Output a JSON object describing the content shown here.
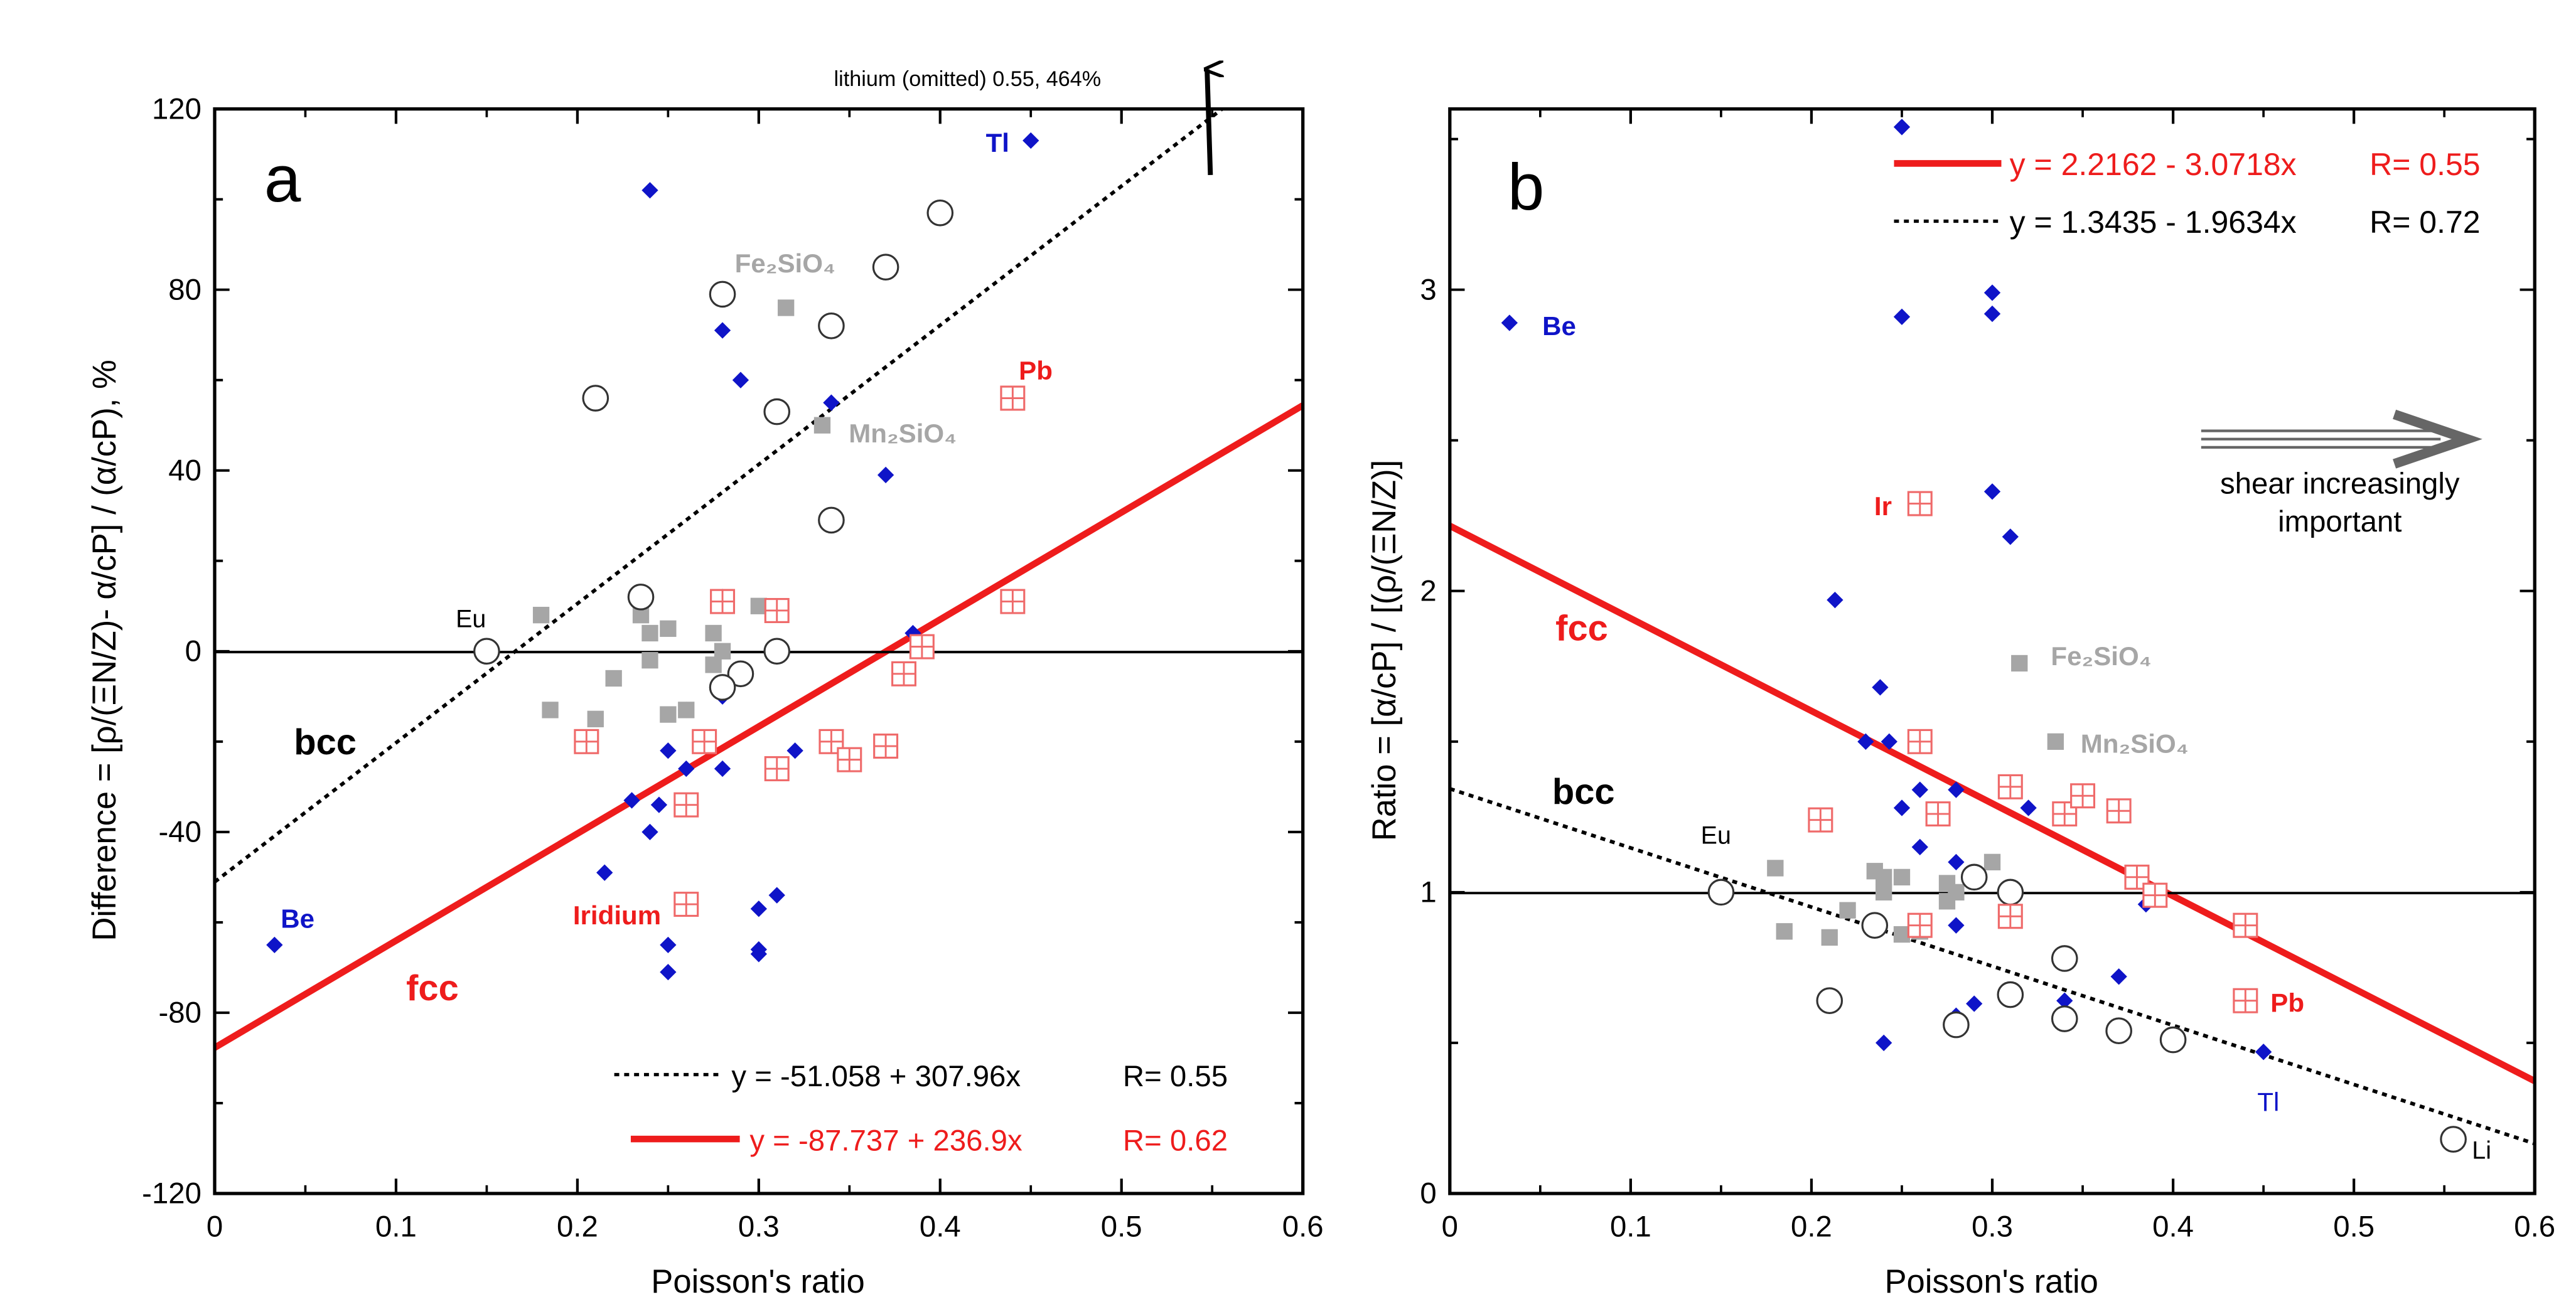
{
  "colors": {
    "red": "#ee1c1c",
    "blue": "#0f14c8",
    "gray": "#a6a6a6",
    "black": "#000000",
    "pinkbox": "#ef6a6a"
  },
  "chart_data": [
    {
      "type": "scatter",
      "panel_label": "a",
      "title": "",
      "xlabel": "Poisson's ratio",
      "ylabel": "Difference = [ρ/(ΞN/Z)- α/cP] / (α/cP), %",
      "xlim": [
        0,
        0.6
      ],
      "ylim": [
        -120,
        120
      ],
      "xticks": [
        "0",
        "0.1",
        "0.2",
        "0.3",
        "0.4",
        "0.5",
        "0.6"
      ],
      "yticks": [
        "-120",
        "-80",
        "-40",
        "0",
        "40",
        "80",
        "120"
      ],
      "annotations": {
        "be": "Be",
        "tl": "Tl",
        "pb": "Pb",
        "iridium": "Iridium",
        "eu": "Eu",
        "fe2sio4": "Fe₂SiO₄",
        "mn2sio4": "Mn₂SiO₄",
        "bcc": "bcc",
        "fcc": "fcc",
        "lithium": "lithium (omitted) 0.55, 464%"
      },
      "legend": [
        {
          "label": "y = -51.058 + 307.96x",
          "r": "R= 0.55",
          "style": "dotted"
        },
        {
          "label": "y = -87.737 + 236.9x",
          "r": "R= 0.62",
          "style": "solid-red"
        }
      ],
      "fits": [
        {
          "name": "bcc",
          "intercept": -51.058,
          "slope": 307.96
        },
        {
          "name": "fcc",
          "intercept": -87.737,
          "slope": 236.9
        }
      ],
      "series": [
        {
          "name": "blue diamonds",
          "points": [
            [
              0.033,
              -65
            ],
            [
              0.24,
              102
            ],
            [
              0.28,
              71
            ],
            [
              0.29,
              60
            ],
            [
              0.34,
              55
            ],
            [
              0.37,
              39
            ],
            [
              0.45,
              113
            ],
            [
              0.28,
              12
            ],
            [
              0.385,
              4
            ],
            [
              0.26,
              -13
            ],
            [
              0.28,
              -10
            ],
            [
              0.25,
              -22
            ],
            [
              0.26,
              -26
            ],
            [
              0.28,
              -26
            ],
            [
              0.32,
              -22
            ],
            [
              0.23,
              -33
            ],
            [
              0.245,
              -34
            ],
            [
              0.24,
              -40
            ],
            [
              0.215,
              -49
            ],
            [
              0.31,
              -54
            ],
            [
              0.3,
              -57
            ],
            [
              0.25,
              -65
            ],
            [
              0.3,
              -66
            ],
            [
              0.3,
              -67
            ],
            [
              0.25,
              -71
            ]
          ]
        },
        {
          "name": "gray squares",
          "points": [
            [
              0.315,
              76
            ],
            [
              0.335,
              50
            ],
            [
              0.18,
              8
            ],
            [
              0.235,
              8
            ],
            [
              0.24,
              4
            ],
            [
              0.25,
              5
            ],
            [
              0.275,
              4
            ],
            [
              0.3,
              10
            ],
            [
              0.24,
              -2
            ],
            [
              0.28,
              0
            ],
            [
              0.275,
              -3
            ],
            [
              0.22,
              -6
            ],
            [
              0.185,
              -13
            ],
            [
              0.21,
              -15
            ],
            [
              0.25,
              -14
            ],
            [
              0.26,
              -13
            ]
          ]
        },
        {
          "name": "open circles",
          "points": [
            [
              0.21,
              56
            ],
            [
              0.28,
              79
            ],
            [
              0.37,
              85
            ],
            [
              0.4,
              97
            ],
            [
              0.34,
              72
            ],
            [
              0.31,
              53
            ],
            [
              0.34,
              29
            ],
            [
              0.235,
              12
            ],
            [
              0.15,
              0
            ],
            [
              0.31,
              0
            ],
            [
              0.29,
              -5
            ],
            [
              0.28,
              -8
            ]
          ]
        },
        {
          "name": "red boxed crosses",
          "points": [
            [
              0.44,
              56
            ],
            [
              0.28,
              11
            ],
            [
              0.31,
              9
            ],
            [
              0.44,
              11
            ],
            [
              0.39,
              1
            ],
            [
              0.38,
              -5
            ],
            [
              0.205,
              -20
            ],
            [
              0.27,
              -20
            ],
            [
              0.34,
              -20
            ],
            [
              0.35,
              -24
            ],
            [
              0.37,
              -21
            ],
            [
              0.31,
              -26
            ],
            [
              0.26,
              -34
            ],
            [
              0.26,
              -56
            ]
          ]
        }
      ]
    },
    {
      "type": "scatter",
      "panel_label": "b",
      "title": "",
      "xlabel": "Poisson's ratio",
      "ylabel": "Ratio = [α/cP] / [(ρ/(ΞN/Z)]",
      "xlim": [
        0,
        0.6
      ],
      "ylim": [
        0,
        3.6
      ],
      "xticks": [
        "0",
        "0.1",
        "0.2",
        "0.3",
        "0.4",
        "0.5",
        "0.6"
      ],
      "yticks": [
        "0",
        "1",
        "2",
        "3"
      ],
      "annotations": {
        "be": "Be",
        "ir": "Ir",
        "pb": "Pb",
        "tl": "Tl",
        "eu": "Eu",
        "li": "Li",
        "fe2sio4": "Fe₂SiO₄",
        "mn2sio4": "Mn₂SiO₄",
        "bcc": "bcc",
        "fcc": "fcc",
        "shear_line1": "shear increasingly",
        "shear_line2": "important"
      },
      "legend": [
        {
          "label": "y = 2.2162 - 3.0718x",
          "r": "R= 0.55",
          "style": "solid-red"
        },
        {
          "label": "y = 1.3435 - 1.9634x",
          "r": "R= 0.72",
          "style": "dotted"
        }
      ],
      "fits": [
        {
          "name": "fcc",
          "intercept": 2.2162,
          "slope": -3.0718
        },
        {
          "name": "bcc",
          "intercept": 1.3435,
          "slope": -1.9634
        }
      ],
      "series": [
        {
          "name": "blue diamonds",
          "points": [
            [
              0.033,
              2.89
            ],
            [
              0.25,
              3.54
            ],
            [
              0.25,
              2.91
            ],
            [
              0.3,
              2.99
            ],
            [
              0.3,
              2.92
            ],
            [
              0.3,
              2.33
            ],
            [
              0.31,
              2.18
            ],
            [
              0.213,
              1.97
            ],
            [
              0.238,
              1.68
            ],
            [
              0.23,
              1.5
            ],
            [
              0.243,
              1.5
            ],
            [
              0.25,
              1.28
            ],
            [
              0.26,
              1.34
            ],
            [
              0.28,
              1.34
            ],
            [
              0.32,
              1.28
            ],
            [
              0.26,
              1.15
            ],
            [
              0.28,
              1.1
            ],
            [
              0.385,
              0.96
            ],
            [
              0.28,
              0.89
            ],
            [
              0.34,
              0.64
            ],
            [
              0.37,
              0.72
            ],
            [
              0.28,
              0.59
            ],
            [
              0.29,
              0.63
            ],
            [
              0.24,
              0.5
            ],
            [
              0.45,
              0.47
            ]
          ]
        },
        {
          "name": "gray squares",
          "points": [
            [
              0.315,
              1.76
            ],
            [
              0.335,
              1.5
            ],
            [
              0.18,
              1.08
            ],
            [
              0.235,
              1.07
            ],
            [
              0.24,
              1.05
            ],
            [
              0.25,
              1.05
            ],
            [
              0.275,
              1.03
            ],
            [
              0.3,
              1.1
            ],
            [
              0.24,
              1.0
            ],
            [
              0.28,
              1.0
            ],
            [
              0.275,
              0.97
            ],
            [
              0.22,
              0.94
            ],
            [
              0.185,
              0.87
            ],
            [
              0.21,
              0.85
            ],
            [
              0.25,
              0.86
            ],
            [
              0.26,
              0.87
            ]
          ]
        },
        {
          "name": "open circles",
          "points": [
            [
              0.15,
              1.0
            ],
            [
              0.235,
              0.89
            ],
            [
              0.21,
              0.64
            ],
            [
              0.28,
              0.56
            ],
            [
              0.29,
              1.05
            ],
            [
              0.31,
              1.0
            ],
            [
              0.31,
              0.66
            ],
            [
              0.34,
              0.78
            ],
            [
              0.34,
              0.58
            ],
            [
              0.37,
              0.54
            ],
            [
              0.4,
              0.51
            ],
            [
              0.555,
              0.18
            ]
          ]
        },
        {
          "name": "red boxed crosses",
          "points": [
            [
              0.26,
              2.29
            ],
            [
              0.26,
              1.5
            ],
            [
              0.205,
              1.24
            ],
            [
              0.27,
              1.26
            ],
            [
              0.31,
              1.35
            ],
            [
              0.34,
              1.26
            ],
            [
              0.35,
              1.32
            ],
            [
              0.37,
              1.27
            ],
            [
              0.38,
              1.05
            ],
            [
              0.39,
              0.99
            ],
            [
              0.26,
              0.89
            ],
            [
              0.31,
              0.92
            ],
            [
              0.44,
              0.89
            ],
            [
              0.44,
              0.64
            ]
          ]
        }
      ]
    }
  ]
}
